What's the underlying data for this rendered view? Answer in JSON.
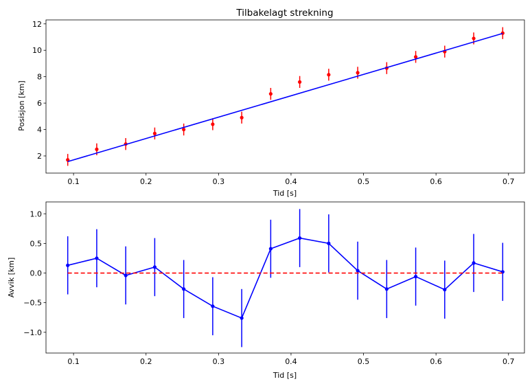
{
  "chart_data": [
    {
      "type": "scatter",
      "title": "Tilbakelagt strekning",
      "xlabel": "Tid [s]",
      "ylabel": "Posisjon [km]",
      "xlim": [
        0.062,
        0.722
      ],
      "ylim": [
        0.7,
        12.3
      ],
      "xticks": [
        "0.1",
        "0.2",
        "0.3",
        "0.4",
        "0.5",
        "0.6",
        "0.7"
      ],
      "yticks": [
        "2",
        "4",
        "6",
        "8",
        "10",
        "12"
      ],
      "grid": false,
      "series": [
        {
          "kind": "errorbar-points",
          "color": "#ff0000",
          "x": [
            0.092,
            0.132,
            0.172,
            0.212,
            0.252,
            0.292,
            0.332,
            0.372,
            0.412,
            0.452,
            0.492,
            0.532,
            0.572,
            0.612,
            0.652,
            0.692
          ],
          "y": [
            1.7,
            2.5,
            2.9,
            3.7,
            4.0,
            4.4,
            4.9,
            6.7,
            7.6,
            8.15,
            8.3,
            8.65,
            9.5,
            9.9,
            10.9,
            11.3
          ],
          "err": 0.45
        },
        {
          "kind": "line",
          "color": "#0000ff",
          "x": [
            0.092,
            0.692
          ],
          "y": [
            1.57,
            11.28
          ]
        }
      ]
    },
    {
      "type": "line",
      "xlabel": "Tid [s]",
      "ylabel": "Avvik [km]",
      "xlim": [
        0.062,
        0.722
      ],
      "ylim": [
        -1.35,
        1.2
      ],
      "xticks": [
        "0.1",
        "0.2",
        "0.3",
        "0.4",
        "0.5",
        "0.6",
        "0.7"
      ],
      "yticks": [
        "−1.0",
        "−0.5",
        "0.0",
        "0.5",
        "1.0"
      ],
      "grid": false,
      "series": [
        {
          "kind": "errorbar-line",
          "color": "#0000ff",
          "x": [
            0.092,
            0.132,
            0.172,
            0.212,
            0.252,
            0.292,
            0.332,
            0.372,
            0.412,
            0.452,
            0.492,
            0.532,
            0.572,
            0.612,
            0.652,
            0.692
          ],
          "y": [
            0.13,
            0.25,
            -0.04,
            0.1,
            -0.27,
            -0.56,
            -0.76,
            0.41,
            0.59,
            0.5,
            0.04,
            -0.27,
            -0.06,
            -0.28,
            0.17,
            0.02
          ],
          "err": 0.49
        },
        {
          "kind": "hline-dashed",
          "color": "#ff0000",
          "y": 0.0
        }
      ]
    }
  ]
}
